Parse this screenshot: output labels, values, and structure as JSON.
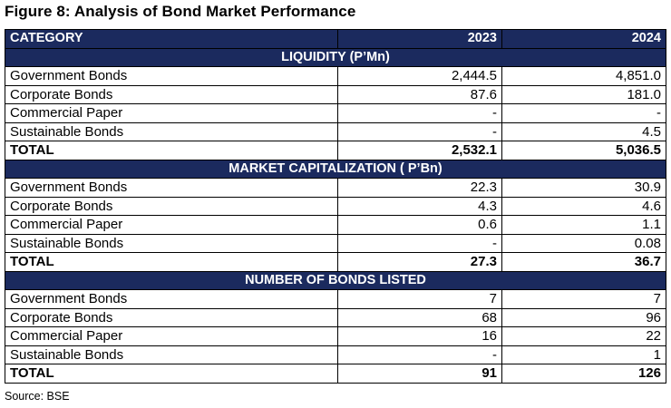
{
  "title": "Figure 8: Analysis of Bond Market Performance",
  "table": {
    "header": {
      "category": "CATEGORY",
      "year1": "2023",
      "year2": "2024"
    },
    "sections": [
      {
        "heading": "LIQUIDITY (P’Mn)",
        "rows": [
          {
            "label": "Government Bonds",
            "v2023": "2,444.5",
            "v2024": "4,851.0"
          },
          {
            "label": "Corporate Bonds",
            "v2023": "87.6",
            "v2024": "181.0"
          },
          {
            "label": "Commercial Paper",
            "v2023": "-",
            "v2024": "-"
          },
          {
            "label": "Sustainable Bonds",
            "v2023": "-",
            "v2024": "4.5"
          }
        ],
        "total": {
          "label": "TOTAL",
          "v2023": "2,532.1",
          "v2024": "5,036.5"
        }
      },
      {
        "heading": "MARKET CAPITALIZATION ( P’Bn)",
        "rows": [
          {
            "label": "Government Bonds",
            "v2023": "22.3",
            "v2024": "30.9"
          },
          {
            "label": "Corporate Bonds",
            "v2023": "4.3",
            "v2024": "4.6"
          },
          {
            "label": "Commercial Paper",
            "v2023": "0.6",
            "v2024": "1.1"
          },
          {
            "label": "Sustainable Bonds",
            "v2023": "-",
            "v2024": "0.08"
          }
        ],
        "total": {
          "label": "TOTAL",
          "v2023": "27.3",
          "v2024": "36.7"
        }
      },
      {
        "heading": "NUMBER OF BONDS LISTED",
        "rows": [
          {
            "label": "Government Bonds",
            "v2023": "7",
            "v2024": "7"
          },
          {
            "label": "Corporate Bonds",
            "v2023": "68",
            "v2024": "96"
          },
          {
            "label": "Commercial Paper",
            "v2023": "16",
            "v2024": "22"
          },
          {
            "label": "Sustainable Bonds",
            "v2023": "-",
            "v2024": "1"
          }
        ],
        "total": {
          "label": "TOTAL",
          "v2023": "91",
          "v2024": "126"
        }
      }
    ]
  },
  "source": "Source: BSE",
  "colors": {
    "header_bg": "#1b2a5e",
    "header_text": "#ffffff"
  }
}
